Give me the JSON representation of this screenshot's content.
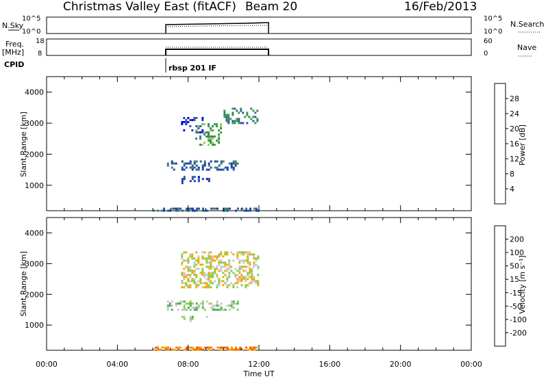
{
  "header": {
    "station": "Christmas Valley East (fitACF)",
    "beam": "Beam 20",
    "date": "16/Feb/2013"
  },
  "params_panels": [
    {
      "left_label": "N.Sky",
      "left_ticks": [
        "10^5",
        "10^0"
      ],
      "right_ticks": [
        "10^5",
        "10^0"
      ],
      "right_label": "N.Search"
    },
    {
      "left_label_top": "Freq.",
      "left_label_bottom": "[MHz]",
      "left_ticks": [
        "18",
        "8"
      ],
      "right_ticks": [
        "60",
        "0"
      ],
      "right_label": "Nave"
    }
  ],
  "cpid": {
    "label": "CPID",
    "program": "rbsp 201 IF",
    "start_hour": 6
  },
  "chart_data": [
    {
      "type": "heatmap",
      "name": "power",
      "ylabel": "Slant Range [km]",
      "ylim": [
        180,
        4500
      ],
      "yticks": [
        1000,
        2000,
        3000,
        4000
      ],
      "xlim": [
        0,
        24
      ],
      "data_extent_hours": [
        6,
        12
      ],
      "colorbar": {
        "label": "Power [dB]",
        "range": [
          0,
          32
        ],
        "ticks": [
          "4",
          "8",
          "12",
          "16",
          "20",
          "24",
          "28"
        ],
        "colors": [
          "#0000ff",
          "#1f3ea8",
          "#2a5a9e",
          "#3c8070",
          "#3aa23a",
          "#8fd14f",
          "#f6a700",
          "#f58200",
          "#ee5a00",
          "#ff0000"
        ]
      },
      "clusters": [
        {
          "t": [
            6.0,
            12.0
          ],
          "r": [
            200,
            280
          ],
          "density": 0.55,
          "level": 2
        },
        {
          "t": [
            7.6,
            8.8
          ],
          "r": [
            2700,
            3200
          ],
          "density": 0.35,
          "level": 1
        },
        {
          "t": [
            8.4,
            9.8
          ],
          "r": [
            2300,
            3000
          ],
          "density": 0.4,
          "level": 4
        },
        {
          "t": [
            10.0,
            11.9
          ],
          "r": [
            3000,
            3500
          ],
          "density": 0.4,
          "level": 3
        },
        {
          "t": [
            6.8,
            10.8
          ],
          "r": [
            1500,
            1800
          ],
          "density": 0.35,
          "level": 2
        },
        {
          "t": [
            7.5,
            9.2
          ],
          "r": [
            1100,
            1300
          ],
          "density": 0.3,
          "level": 1
        }
      ]
    },
    {
      "type": "heatmap",
      "name": "velocity",
      "ylabel": "Slant Range [km]",
      "xlabel": "Time UT",
      "ylim": [
        180,
        4500
      ],
      "yticks": [
        1000,
        2000,
        3000,
        4000
      ],
      "xlim": [
        0,
        24
      ],
      "xticks": [
        "00:00",
        "04:00",
        "08:00",
        "12:00",
        "16:00",
        "20:00",
        "00:00"
      ],
      "data_extent_hours": [
        6,
        12
      ],
      "colorbar": {
        "label": "Velocity [m s⁻¹]",
        "ticks": [
          "200",
          "100",
          "50",
          "15",
          "-15",
          "-50",
          "-100",
          "-200"
        ],
        "colors": [
          "#1a1aff",
          "#2a5a9e",
          "#3c8070",
          "#4fa84f",
          "#7fd14f",
          "#c8c8c8",
          "#f6a700",
          "#f58200",
          "#ee5a00",
          "#ff0000"
        ]
      },
      "clusters": [
        {
          "t": [
            6.0,
            12.0
          ],
          "r": [
            200,
            300
          ],
          "density": 0.6,
          "level": 7
        },
        {
          "t": [
            7.6,
            11.9
          ],
          "r": [
            2200,
            3400
          ],
          "density": 0.45,
          "level": 5
        },
        {
          "t": [
            6.8,
            10.8
          ],
          "r": [
            1500,
            1800
          ],
          "density": 0.45,
          "level": 4
        },
        {
          "t": [
            7.5,
            9.2
          ],
          "r": [
            1100,
            1300
          ],
          "density": 0.3,
          "level": 4
        }
      ]
    }
  ]
}
